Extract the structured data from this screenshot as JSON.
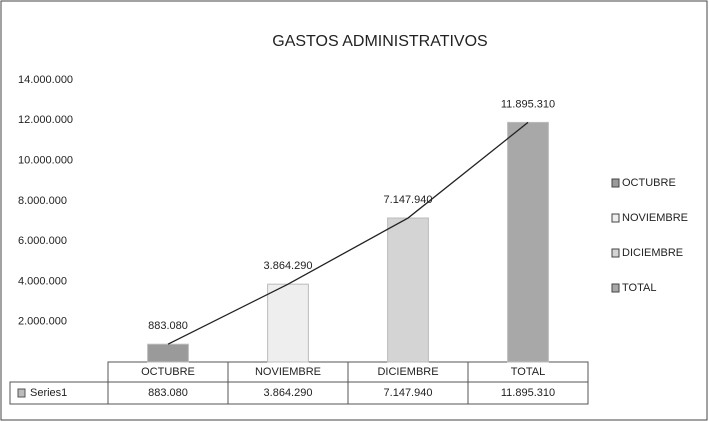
{
  "chart_data": {
    "type": "bar",
    "title": "GASTOS ADMINISTRATIVOS",
    "categories": [
      "OCTUBRE",
      "NOVIEMBRE",
      "DICIEMBRE",
      "TOTAL"
    ],
    "series_name": "Series1",
    "values": [
      883080,
      3864290,
      7147940,
      11895310
    ],
    "value_labels": [
      "883.080",
      "3.864.290",
      "7.147.940",
      "11.895.310"
    ],
    "colors": [
      "#9a9a9a",
      "#eeeeee",
      "#d4d4d4",
      "#a8a8a8"
    ],
    "line_color": "#222222",
    "ylim": [
      0,
      14000000
    ],
    "yticks": [
      {
        "value": 2000000,
        "label": "2.000.000"
      },
      {
        "value": 4000000,
        "label": "4.000.000"
      },
      {
        "value": 6000000,
        "label": "6.000.000"
      },
      {
        "value": 8000000,
        "label": "8.000.000"
      },
      {
        "value": 10000000,
        "label": "10.000.000"
      },
      {
        "value": 12000000,
        "label": "12.000.000"
      },
      {
        "value": 14000000,
        "label": "14.000.000"
      }
    ],
    "legend": "right"
  }
}
